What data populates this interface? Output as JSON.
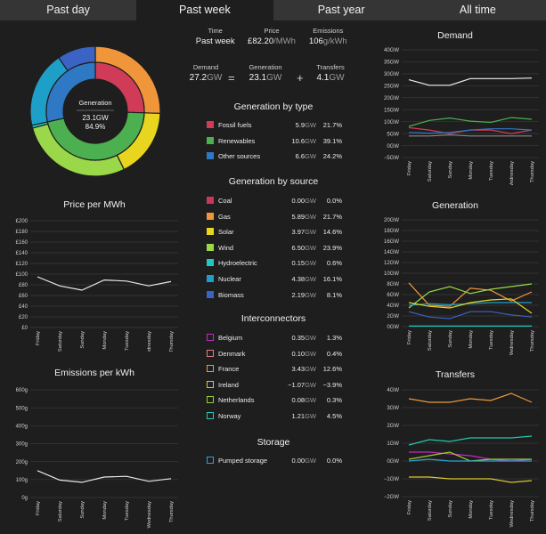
{
  "tabs": [
    {
      "label": "Past day",
      "active": false
    },
    {
      "label": "Past week",
      "active": true
    },
    {
      "label": "Past year",
      "active": false
    },
    {
      "label": "All time",
      "active": false
    }
  ],
  "summary": {
    "time_label": "Time",
    "time_value": "Past week",
    "price_label": "Price",
    "price_value": "£82.20",
    "price_unit": "/MWh",
    "emissions_label": "Emissions",
    "emissions_value": "106",
    "emissions_unit": "g/kWh",
    "demand_label": "Demand",
    "demand_value": "27.2",
    "demand_unit": "GW",
    "generation_label": "Generation",
    "generation_value": "23.1",
    "generation_unit": "GW",
    "transfers_label": "Transfers",
    "transfers_value": "4.1",
    "transfers_unit": "GW",
    "equals": "=",
    "plus": "+"
  },
  "donut": {
    "center_title": "Generation",
    "center_value": "23.1GW",
    "center_pct": "84.9%",
    "inner": [
      {
        "value": 21.7,
        "color": "#d03c57"
      },
      {
        "value": 39.1,
        "color": "#4caf50"
      },
      {
        "value": 24.2,
        "color": "#2f78c4"
      }
    ],
    "outer": [
      {
        "value": 0.0,
        "color": "#c8385a"
      },
      {
        "value": 21.7,
        "color": "#f0963a"
      },
      {
        "value": 14.6,
        "color": "#e8d51f"
      },
      {
        "value": 23.9,
        "color": "#9ad84a"
      },
      {
        "value": 0.6,
        "color": "#1fc9c1"
      },
      {
        "value": 16.1,
        "color": "#1e9fc8"
      },
      {
        "value": 8.1,
        "color": "#3a63c4"
      }
    ]
  },
  "generation_by_type": {
    "title": "Generation by type",
    "rows": [
      {
        "name": "Fossil fuels",
        "value": "5.9",
        "unit": "GW",
        "pct": "21.7%",
        "color": "#d03c57",
        "hollow": false
      },
      {
        "name": "Renewables",
        "value": "10.6",
        "unit": "GW",
        "pct": "39.1%",
        "color": "#4caf50",
        "hollow": false
      },
      {
        "name": "Other sources",
        "value": "6.6",
        "unit": "GW",
        "pct": "24.2%",
        "color": "#2f78c4",
        "hollow": false
      }
    ]
  },
  "generation_by_source": {
    "title": "Generation by source",
    "rows": [
      {
        "name": "Coal",
        "value": "0.00",
        "unit": "GW",
        "pct": "0.0%",
        "color": "#c8385a",
        "hollow": false
      },
      {
        "name": "Gas",
        "value": "5.89",
        "unit": "GW",
        "pct": "21.7%",
        "color": "#f0963a",
        "hollow": false
      },
      {
        "name": "Solar",
        "value": "3.97",
        "unit": "GW",
        "pct": "14.6%",
        "color": "#e8d51f",
        "hollow": false
      },
      {
        "name": "Wind",
        "value": "6.50",
        "unit": "GW",
        "pct": "23.9%",
        "color": "#9ad84a",
        "hollow": false
      },
      {
        "name": "Hydroelectric",
        "value": "0.15",
        "unit": "GW",
        "pct": "0.6%",
        "color": "#1fc9c1",
        "hollow": false
      },
      {
        "name": "Nuclear",
        "value": "4.38",
        "unit": "GW",
        "pct": "16.1%",
        "color": "#1e9fc8",
        "hollow": false
      },
      {
        "name": "Biomass",
        "value": "2.19",
        "unit": "GW",
        "pct": "8.1%",
        "color": "#3a63c4",
        "hollow": false
      }
    ]
  },
  "interconnectors": {
    "title": "Interconnectors",
    "rows": [
      {
        "name": "Belgium",
        "value": "0.35",
        "unit": "GW",
        "pct": "1.3%",
        "color": "#c02dc0",
        "hollow": true
      },
      {
        "name": "Denmark",
        "value": "0.10",
        "unit": "GW",
        "pct": "0.4%",
        "color": "#e08080",
        "hollow": true
      },
      {
        "name": "France",
        "value": "3.43",
        "unit": "GW",
        "pct": "12.6%",
        "color": "#e89a3c",
        "hollow": true
      },
      {
        "name": "Ireland",
        "value": "−1.07",
        "unit": "GW",
        "pct": "−3.9%",
        "color": "#d8c82a",
        "hollow": true
      },
      {
        "name": "Netherlands",
        "value": "0.08",
        "unit": "GW",
        "pct": "0.3%",
        "color": "#9acd32",
        "hollow": true
      },
      {
        "name": "Norway",
        "value": "1.21",
        "unit": "GW",
        "pct": "4.5%",
        "color": "#20c9b0",
        "hollow": true
      }
    ]
  },
  "storage": {
    "title": "Storage",
    "rows": [
      {
        "name": "Pumped storage",
        "value": "0.00",
        "unit": "GW",
        "pct": "0.0%",
        "color": "#2fa0d8",
        "hollow": true
      }
    ]
  },
  "chart_data": [
    {
      "type": "line",
      "title": "Price per MWh",
      "categories": [
        "Friday",
        "Saturday",
        "Sunday",
        "Monday",
        "Tuesday",
        "Wednesday",
        "Thursday"
      ],
      "yticks": [
        "£0",
        "£20",
        "£40",
        "£60",
        "£80",
        "£100",
        "£120",
        "£140",
        "£160",
        "£180",
        "£200"
      ],
      "ylim": [
        0,
        200
      ],
      "series": [
        {
          "values": [
            95,
            78,
            70,
            89,
            87,
            78,
            86
          ],
          "color": "#e8e8e8"
        }
      ]
    },
    {
      "type": "line",
      "title": "Emissions per kWh",
      "categories": [
        "Friday",
        "Saturday",
        "Sunday",
        "Monday",
        "Tuesday",
        "Wednesday",
        "Thursday"
      ],
      "yticks": [
        "0g",
        "100g",
        "200g",
        "300g",
        "400g",
        "500g",
        "600g"
      ],
      "ylim": [
        0,
        600
      ],
      "series": [
        {
          "values": [
            150,
            97,
            85,
            114,
            118,
            90,
            105
          ],
          "color": "#e8e8e8"
        }
      ]
    },
    {
      "type": "line",
      "title": "Demand",
      "categories": [
        "Friday",
        "Saturday",
        "Sunday",
        "Monday",
        "Tuesday",
        "Wednesday",
        "Thursday"
      ],
      "yticks": [
        "−5GW",
        "0GW",
        "5GW",
        "10GW",
        "15GW",
        "20GW",
        "25GW",
        "30GW",
        "35GW",
        "40GW"
      ],
      "ylim": [
        -5,
        40
      ],
      "series": [
        {
          "values": [
            27.5,
            25.2,
            25.2,
            28,
            28,
            28,
            28.2
          ],
          "color": "#f0f0f0"
        },
        {
          "values": [
            8,
            10.5,
            11.5,
            10.2,
            9.7,
            11.7,
            11
          ],
          "color": "#4caf50"
        },
        {
          "values": [
            7.5,
            6.5,
            5,
            6.5,
            6.5,
            5,
            6.5
          ],
          "color": "#d03c57"
        },
        {
          "values": [
            5.5,
            5.2,
            5.5,
            6.5,
            7,
            7,
            6.5
          ],
          "color": "#2f78c4"
        },
        {
          "values": [
            4,
            4,
            4.5,
            4,
            4,
            4,
            4
          ],
          "color": "#888888"
        }
      ]
    },
    {
      "type": "line",
      "title": "Generation",
      "categories": [
        "Friday",
        "Saturday",
        "Sunday",
        "Monday",
        "Tuesday",
        "Wednesday",
        "Thursday"
      ],
      "yticks": [
        "0GW",
        "2GW",
        "4GW",
        "6GW",
        "8GW",
        "10GW",
        "12GW",
        "14GW",
        "16GW",
        "18GW",
        "20GW"
      ],
      "ylim": [
        0,
        20
      ],
      "series": [
        {
          "values": [
            8.2,
            4,
            3.8,
            7.2,
            6.8,
            4.8,
            6.5
          ],
          "color": "#f0963a"
        },
        {
          "values": [
            3.5,
            6.5,
            7.5,
            6.2,
            7,
            7.5,
            8
          ],
          "color": "#9ad84a"
        },
        {
          "values": [
            4,
            4.3,
            4.1,
            4.3,
            4.5,
            4.5,
            4.5
          ],
          "color": "#1e9fc8"
        },
        {
          "values": [
            2.8,
            1.8,
            1.5,
            2.8,
            2.8,
            2.2,
            1.8
          ],
          "color": "#3a63c4"
        },
        {
          "values": [
            4.5,
            3.8,
            3.5,
            4.5,
            5,
            5.2,
            2.5
          ],
          "color": "#e8d51f"
        },
        {
          "values": [
            0.1,
            0.1,
            0.1,
            0.1,
            0.1,
            0.1,
            0.1
          ],
          "color": "#1fc9c1"
        }
      ]
    },
    {
      "type": "line",
      "title": "Transfers",
      "categories": [
        "Friday",
        "Saturday",
        "Sunday",
        "Monday",
        "Tuesday",
        "Wednesday",
        "Thursday"
      ],
      "yticks": [
        "−2GW",
        "−1GW",
        "0GW",
        "1GW",
        "2GW",
        "3GW",
        "4GW"
      ],
      "ylim": [
        -2,
        4
      ],
      "series": [
        {
          "values": [
            3.5,
            3.3,
            3.3,
            3.5,
            3.4,
            3.8,
            3.3
          ],
          "color": "#e89a3c"
        },
        {
          "values": [
            0.9,
            1.2,
            1.1,
            1.3,
            1.3,
            1.3,
            1.4
          ],
          "color": "#20c9b0"
        },
        {
          "values": [
            0.5,
            0.5,
            0.4,
            0.3,
            0.1,
            0.0,
            0.1
          ],
          "color": "#c02dc0"
        },
        {
          "values": [
            0.1,
            0.3,
            0.5,
            0.0,
            0.1,
            0.1,
            0.1
          ],
          "color": "#9acd32"
        },
        {
          "values": [
            0.0,
            0.1,
            0.0,
            0.0,
            0.0,
            0.0,
            0.0
          ],
          "color": "#2fa0d8"
        },
        {
          "values": [
            -0.9,
            -0.9,
            -1.0,
            -1.0,
            -1.0,
            -1.2,
            -1.1
          ],
          "color": "#d8c82a"
        }
      ]
    }
  ]
}
